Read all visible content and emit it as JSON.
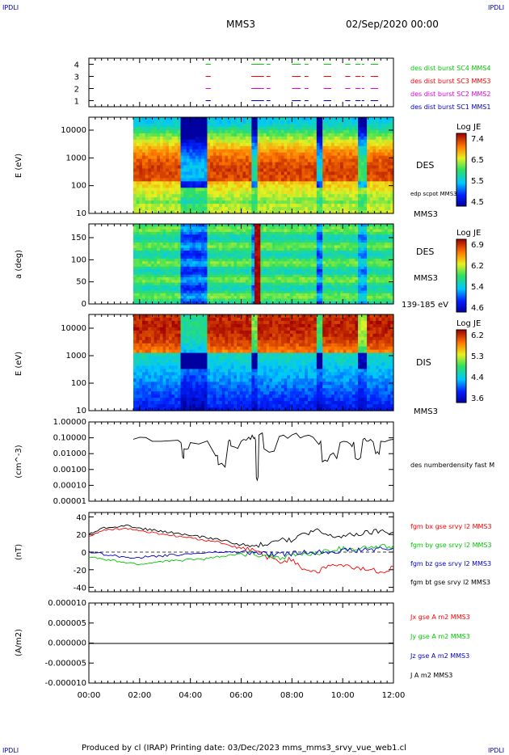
{
  "header": {
    "corner_left_top": "IPDLI",
    "corner_right_top": "IPDLI",
    "corner_left_bottom": "IPDLI",
    "corner_right_bottom": "IPDLI",
    "mission": "MMS3",
    "datetime": "02/Sep/2020 00:00"
  },
  "footer": {
    "text": "Produced by cl (IRAP)   Printing date: 03/Dec/2023   mms_mms3_srvy_vue_web1.cl"
  },
  "x_axis": {
    "ticks": [
      "00:00",
      "02:00",
      "04:00",
      "06:00",
      "08:00",
      "10:00",
      "12:00"
    ],
    "range_hours": [
      0,
      12
    ]
  },
  "colors": {
    "red": "#ff0000",
    "green": "#00c800",
    "blue": "#0000c8",
    "magenta": "#e000e0",
    "black": "#000000"
  },
  "chart_data": [
    {
      "type": "line",
      "panel": "burst",
      "yticks": [
        "1",
        "2",
        "3",
        "4"
      ],
      "ylim": [
        0.5,
        4.5
      ],
      "series": [
        {
          "name": "des dist burst SC1 MMS1",
          "color": "#0000c8",
          "level": 1
        },
        {
          "name": "des dist burst SC2 MMS2",
          "color": "#e000e0",
          "level": 2
        },
        {
          "name": "des dist burst SC3 MMS3",
          "color": "#ff0000",
          "level": 3
        },
        {
          "name": "des dist burst SC4 MMS4",
          "color": "#00c800",
          "level": 4
        }
      ],
      "segments_hours": [
        [
          4.6,
          4.8
        ],
        [
          6.4,
          6.9
        ],
        [
          7.0,
          7.15
        ],
        [
          8.0,
          8.35
        ],
        [
          8.5,
          8.65
        ],
        [
          9.25,
          9.55
        ],
        [
          10.1,
          10.3
        ],
        [
          10.5,
          10.7
        ],
        [
          10.75,
          10.85
        ],
        [
          11.1,
          11.4
        ]
      ]
    },
    {
      "type": "heatmap",
      "panel": "electron-energy",
      "ylabel": "E (eV)",
      "yticks": [
        "10",
        "100",
        "1000",
        "10000"
      ],
      "ylim": [
        10,
        30000
      ],
      "log_y": true,
      "label_main": "DES",
      "label_sub": "MMS3",
      "overlay_label": "edp scpot MMS3",
      "colorbar": {
        "title": "Log JE",
        "ticks": [
          "7.4",
          "6.5",
          "5.5",
          "4.5"
        ],
        "range": [
          4.5,
          7.4
        ]
      },
      "data_start_hours": 1.75
    },
    {
      "type": "heatmap",
      "panel": "electron-pitch-angle",
      "ylabel": "a (deg)",
      "yticks": [
        "0",
        "50",
        "100",
        "150"
      ],
      "ylim": [
        0,
        180
      ],
      "label_main": "DES",
      "label_sub": "MMS3",
      "label_energy": "139-185 eV",
      "colorbar": {
        "title": "Log JE",
        "ticks": [
          "6.9",
          "6.2",
          "5.4",
          "4.6"
        ],
        "range": [
          4.6,
          6.9
        ]
      },
      "data_start_hours": 1.75
    },
    {
      "type": "heatmap",
      "panel": "ion-energy",
      "ylabel": "E (eV)",
      "yticks": [
        "10",
        "100",
        "1000",
        "10000"
      ],
      "ylim": [
        10,
        30000
      ],
      "log_y": true,
      "label_main": "DIS",
      "label_sub": "MMS3",
      "colorbar": {
        "title": "Log JE",
        "ticks": [
          "6.2",
          "5.3",
          "4.4",
          "3.6"
        ],
        "range": [
          3.6,
          6.2
        ]
      },
      "data_start_hours": 1.75
    },
    {
      "type": "line",
      "panel": "density",
      "ylabel": "(cm^-3)",
      "yticks": [
        "1.00000",
        "0.10000",
        "0.01000",
        "0.00100",
        "0.00010",
        "0.00001"
      ],
      "ylim": [
        1e-05,
        1
      ],
      "log_y": true,
      "series": [
        {
          "name": "des numberdensity fast M",
          "color": "#000000"
        }
      ],
      "x_hours": [
        1.75,
        2.5,
        3.5,
        3.7,
        3.75,
        4.0,
        5.0,
        5.1,
        5.5,
        5.6,
        6.0,
        6.3,
        6.5,
        6.6,
        6.7,
        6.9,
        7.5,
        8.0,
        8.5,
        9.0,
        9.2,
        9.5,
        9.9,
        10.3,
        10.5,
        10.8,
        11.0,
        11.3,
        11.5,
        12.0
      ],
      "values": [
        0.08,
        0.06,
        0.07,
        0.006,
        0.02,
        0.05,
        0.007,
        0.002,
        0.06,
        0.03,
        0.06,
        0.11,
        0.09,
        0.0003,
        0.15,
        0.02,
        0.12,
        0.15,
        0.13,
        0.05,
        0.003,
        0.008,
        0.05,
        0.04,
        0.005,
        0.08,
        0.06,
        0.01,
        0.06,
        0.08
      ]
    },
    {
      "type": "line",
      "panel": "magnetic-field",
      "ylabel": "(nT)",
      "yticks": [
        "40",
        "20",
        "0",
        "-20",
        "-40"
      ],
      "ylim": [
        -45,
        45
      ],
      "series": [
        {
          "name": "fgm bx gse srvy l2 MMS3",
          "color": "#ff0000",
          "values": [
            18,
            24,
            26,
            27,
            24,
            22,
            20,
            18,
            16,
            14,
            12,
            8,
            4,
            2,
            -5,
            -12,
            -8,
            -20,
            -22,
            -15,
            -16,
            -18,
            -20,
            -22,
            -18
          ]
        },
        {
          "name": "fgm by gse srvy l2 MMS3",
          "color": "#00c800",
          "values": [
            -5,
            -8,
            -10,
            -12,
            -14,
            -12,
            -10,
            -10,
            -8,
            -8,
            -6,
            -4,
            -2,
            -2,
            -4,
            -6,
            -4,
            -2,
            -2,
            2,
            4,
            4,
            5,
            6,
            6
          ]
        },
        {
          "name": "fgm bz gse srvy l2 MMS3",
          "color": "#0000c8",
          "values": [
            0,
            -2,
            -4,
            -6,
            -6,
            -5,
            -4,
            -3,
            -2,
            -1,
            0,
            0,
            0,
            -1,
            -2,
            -3,
            -2,
            0,
            0,
            1,
            2,
            2,
            3,
            3,
            4
          ]
        },
        {
          "name": "fgm bt gse srvy l2 MMS3",
          "color": "#000000",
          "values": [
            20,
            27,
            29,
            30,
            27,
            25,
            23,
            21,
            19,
            17,
            15,
            12,
            8,
            6,
            10,
            16,
            12,
            22,
            24,
            18,
            18,
            20,
            22,
            24,
            22
          ]
        }
      ]
    },
    {
      "type": "line",
      "panel": "current-density",
      "ylabel": "(A/m2)",
      "yticks": [
        "0.000010",
        "0.000005",
        "0.000000",
        "-0.000005",
        "-0.000010"
      ],
      "ylim": [
        -1e-05,
        1e-05
      ],
      "series": [
        {
          "name": "Jx gse A m2 MMS3",
          "color": "#ff0000"
        },
        {
          "name": "Jy gse A m2 MMS3",
          "color": "#00c800"
        },
        {
          "name": "Jz gse A m2 MMS3",
          "color": "#0000c8"
        },
        {
          "name": "J A m2 MMS3",
          "color": "#000000"
        }
      ]
    }
  ]
}
